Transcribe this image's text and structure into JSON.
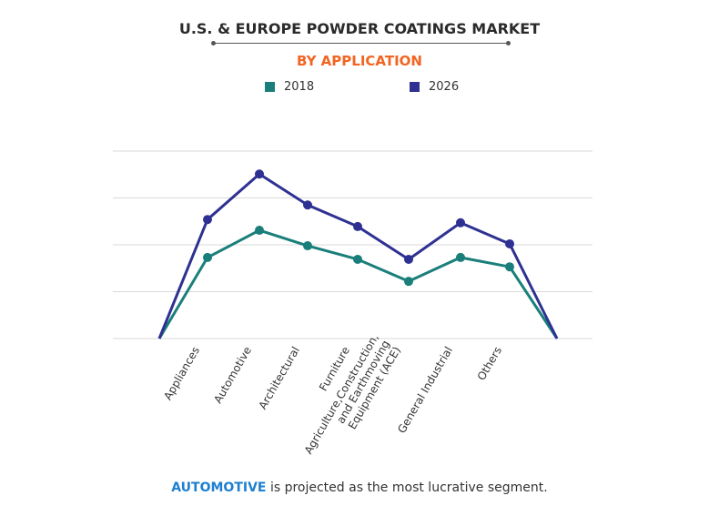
{
  "chart_data": {
    "type": "line",
    "title": "U.S. & EUROPE POWDER COATINGS MARKET",
    "subtitle": "BY APPLICATION",
    "categories": [
      "",
      "Appliances",
      "Automotive",
      "Architectural",
      "Furniture",
      "Agriculture,Construction,|and Earthmoving|Equipment (ACE)",
      "General Industrial",
      "Others",
      ""
    ],
    "series": [
      {
        "name": "2018",
        "color": "#1a7f7a",
        "values": [
          0,
          1.73,
          2.31,
          1.98,
          1.69,
          1.22,
          1.73,
          1.53,
          0
        ]
      },
      {
        "name": "2026",
        "color": "#2e3192",
        "values": [
          0,
          2.54,
          3.51,
          2.85,
          2.39,
          1.69,
          2.47,
          2.02,
          0
        ]
      }
    ],
    "ylim": [
      0,
      4
    ],
    "grid": true,
    "legend": "top-center",
    "y_tick_labels": false
  },
  "footer": {
    "highlight": "AUTOMOTIVE",
    "text": " is projected as the most lucrative segment."
  }
}
